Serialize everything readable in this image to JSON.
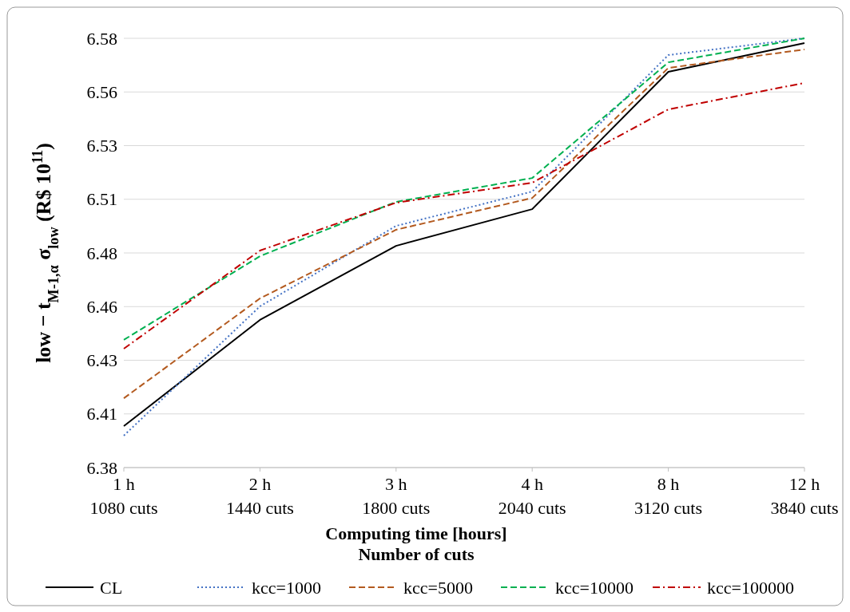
{
  "chart_data": {
    "type": "line",
    "xlabel": "Computing time [hours]\nNumber of cuts",
    "ylabel": "low − t$_{M-1,α}$ σ$_{low}$  (R$ 10$^{11}$)",
    "categories": [
      "1 h\n1080 cuts",
      "2 h\n1440 cuts",
      "3 h\n1800 cuts",
      "4 h\n2040 cuts",
      "8 h\n3120 cuts",
      "12 h\n3840 cuts"
    ],
    "ylim": [
      6.38,
      6.58
    ],
    "yticks": [
      {
        "value": 6.38,
        "label": "6.38"
      },
      {
        "value": 6.405,
        "label": "6.41"
      },
      {
        "value": 6.43,
        "label": "6.43"
      },
      {
        "value": 6.455,
        "label": "6.46"
      },
      {
        "value": 6.48,
        "label": "6.48"
      },
      {
        "value": 6.505,
        "label": "6.51"
      },
      {
        "value": 6.53,
        "label": "6.53"
      },
      {
        "value": 6.555,
        "label": "6.56"
      },
      {
        "value": 6.58,
        "label": "6.58"
      }
    ],
    "grid": "y",
    "legend": "bottom",
    "marker": "none",
    "series": [
      {
        "name": "CL",
        "color": "#000000",
        "line_style": "solid",
        "values": [
          6.3993,
          6.4488,
          6.4833,
          6.5004,
          6.5644,
          6.5778
        ]
      },
      {
        "name": "kcc=1000",
        "color": "#4472c4",
        "line_style": "dotted",
        "values": [
          6.3949,
          6.4551,
          6.4926,
          6.5086,
          6.5722,
          6.58
        ]
      },
      {
        "name": "kcc=5000",
        "color": "#b35a1f",
        "line_style": "dashed",
        "values": [
          6.4123,
          6.4588,
          6.4908,
          6.5056,
          6.5662,
          6.5748
        ]
      },
      {
        "name": "kcc=10000",
        "color": "#00b050",
        "line_style": "dashed",
        "values": [
          6.4395,
          6.4785,
          6.5038,
          6.5149,
          6.5688,
          6.58
        ]
      },
      {
        "name": "kcc=100000",
        "color": "#c00000",
        "line_style": "dashdot",
        "values": [
          6.4354,
          6.4811,
          6.5034,
          6.5127,
          6.5469,
          6.5592
        ]
      }
    ]
  }
}
